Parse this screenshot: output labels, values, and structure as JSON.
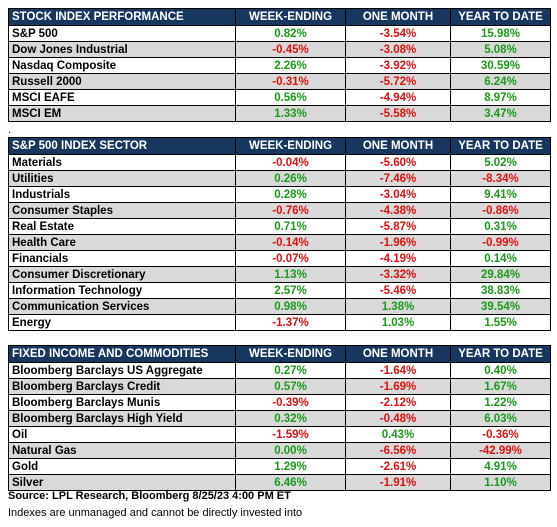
{
  "tables": [
    {
      "headers": [
        "STOCK INDEX PERFORMANCE",
        "WEEK-ENDING",
        "ONE MONTH",
        "YEAR TO DATE"
      ],
      "rows": [
        [
          "S&P 500",
          "0.82%",
          "-3.54%",
          "15.98%"
        ],
        [
          "Dow Jones Industrial",
          "-0.45%",
          "-3.08%",
          "5.08%"
        ],
        [
          "Nasdaq Composite",
          "2.26%",
          "-3.92%",
          "30.59%"
        ],
        [
          "Russell 2000",
          "-0.31%",
          "-5.72%",
          "6.24%"
        ],
        [
          "MSCI EAFE",
          "0.56%",
          "-4.94%",
          "8.97%"
        ],
        [
          "MSCI EM",
          "1.33%",
          "-5.58%",
          "3.47%"
        ]
      ]
    },
    {
      "headers": [
        "S&P 500 INDEX SECTOR",
        "WEEK-ENDING",
        "ONE MONTH",
        "YEAR TO DATE"
      ],
      "rows": [
        [
          "Materials",
          "-0.04%",
          "-5.60%",
          "5.02%"
        ],
        [
          "Utilities",
          "0.26%",
          "-7.46%",
          "-8.34%"
        ],
        [
          "Industrials",
          "0.28%",
          "-3.04%",
          "9.41%"
        ],
        [
          "Consumer Staples",
          "-0.76%",
          "-4.38%",
          "-0.86%"
        ],
        [
          "Real Estate",
          "0.71%",
          "-5.87%",
          "0.31%"
        ],
        [
          "Health Care",
          "-0.14%",
          "-1.96%",
          "-0.99%"
        ],
        [
          "Financials",
          "-0.07%",
          "-4.19%",
          "0.14%"
        ],
        [
          "Consumer Discretionary",
          "1.13%",
          "-3.32%",
          "29.84%"
        ],
        [
          "Information Technology",
          "2.57%",
          "-5.46%",
          "38.83%"
        ],
        [
          "Communication Services",
          "0.98%",
          "1.38%",
          "39.54%"
        ],
        [
          "Energy",
          "-1.37%",
          "1.03%",
          "1.55%"
        ]
      ]
    },
    {
      "headers": [
        "FIXED INCOME AND COMMODITIES",
        "WEEK-ENDING",
        "ONE MONTH",
        "YEAR TO DATE"
      ],
      "rows": [
        [
          "Bloomberg Barclays US Aggregate",
          "0.27%",
          "-1.64%",
          "0.40%"
        ],
        [
          "Bloomberg Barclays Credit",
          "0.57%",
          "-1.69%",
          "1.67%"
        ],
        [
          "Bloomberg Barclays Munis",
          "-0.39%",
          "-2.12%",
          "1.22%"
        ],
        [
          "Bloomberg Barclays High Yield",
          "0.32%",
          "-0.48%",
          "6.03%"
        ],
        [
          "Oil",
          "-1.59%",
          "0.43%",
          "-0.36%"
        ],
        [
          "Natural Gas",
          "0.00%",
          "-6.56%",
          "-42.99%"
        ],
        [
          "Gold",
          "1.29%",
          "-2.61%",
          "4.91%"
        ],
        [
          "Silver",
          "6.46%",
          "-1.91%",
          "1.10%"
        ]
      ]
    }
  ],
  "separator": ".",
  "source": "Source: LPL Research, Bloomberg 8/25/23 4:00 PM ET",
  "note": "Indexes are unmanaged and cannot be directly invested into"
}
